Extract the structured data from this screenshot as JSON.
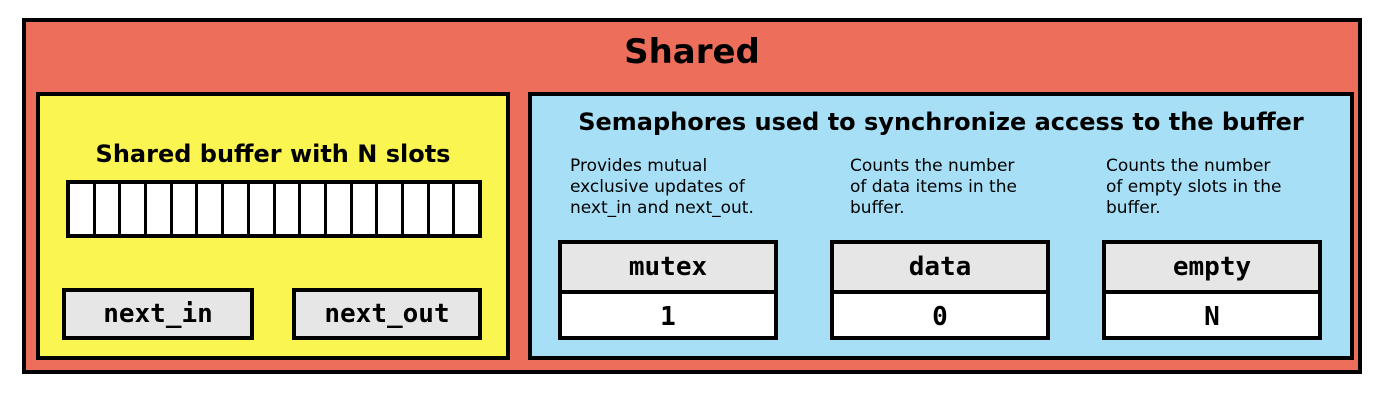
{
  "shared": {
    "title": "Shared"
  },
  "buffer": {
    "title": "Shared buffer with N slots",
    "slot_count": 16,
    "next_in": "next_in",
    "next_out": "next_out"
  },
  "semaphores": {
    "title": "Semaphores used to synchronize access to the buffer",
    "items": [
      {
        "name": "mutex",
        "value": "1",
        "description": "Provides mutual\nexclusive updates of\nnext_in and next_out."
      },
      {
        "name": "data",
        "value": "0",
        "description": "Counts the number\nof data items in the\nbuffer."
      },
      {
        "name": "empty",
        "value": "N",
        "description": "Counts the number\nof empty slots in the\nbuffer."
      }
    ]
  },
  "colors": {
    "shared_bg": "#EE6E5C",
    "buffer_bg": "#FAF550",
    "semaphore_bg": "#A7DFF6",
    "label_bg": "#E6E6E6"
  }
}
